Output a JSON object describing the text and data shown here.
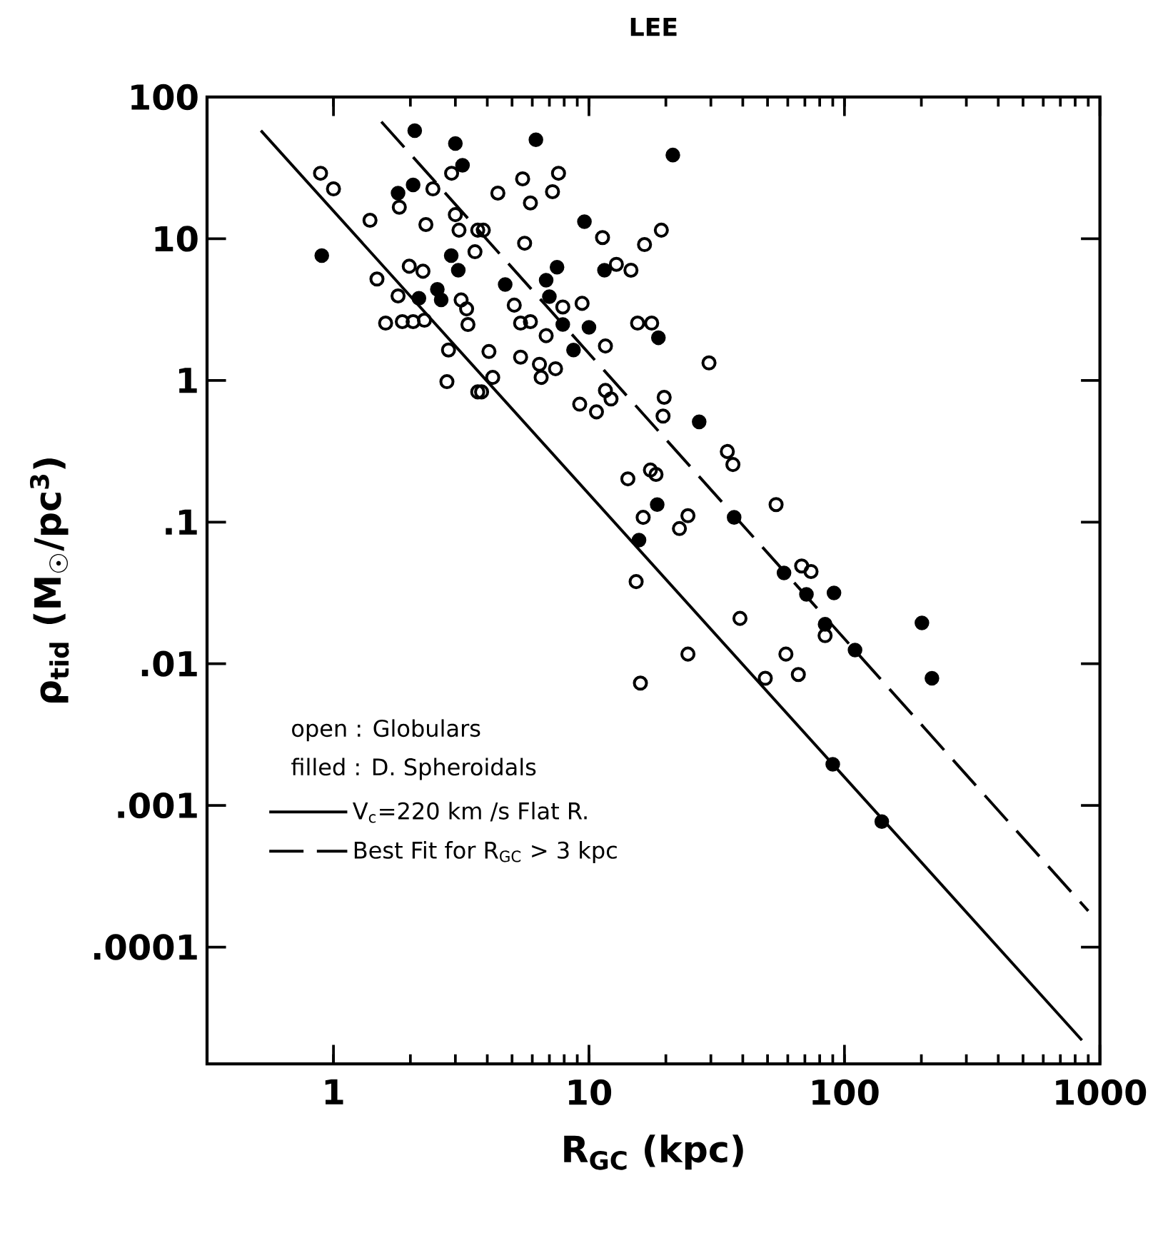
{
  "chart_data": {
    "type": "scatter",
    "title": "LEE",
    "xlabel": "R$_{GC}$ (kpc)",
    "ylabel": "ρ$_{tid}$ (M$_{☉}$/pc$^{3}$)",
    "log": "xy",
    "xlim": [
      0.32,
      1000
    ],
    "ylim": [
      1.5e-05,
      100
    ],
    "xticks": [
      1,
      10,
      100,
      1000
    ],
    "yticks": [
      100,
      10,
      1,
      {
        "value": 0.1,
        "label": ".1"
      },
      {
        "value": 0.01,
        "label": ".01"
      },
      {
        "value": 0.001,
        "label": ".001"
      },
      {
        "value": 0.0001,
        "label": ".0001"
      }
    ],
    "legend": "bottom left",
    "annotations": [
      "open : Globulars",
      "filled : D. Spheroidals"
    ],
    "series": [
      {
        "marker": "open circle",
        "color": "#000000",
        "x": [
          0.89,
          1.0,
          1.39,
          2.3,
          3.1,
          3.0,
          2.9,
          2.45,
          1.81,
          3.67,
          3.58,
          1.98,
          2.24,
          1.48,
          1.79,
          3.16,
          3.32,
          3.36,
          1.6,
          1.86,
          2.05,
          2.27,
          2.82,
          2.78,
          3.67,
          5.5,
          7.6,
          4.4,
          7.2,
          5.9,
          11.3,
          19.2,
          16.5,
          3.86,
          5.6,
          12.8,
          14.6,
          9.4,
          7.9,
          5.1,
          5.4,
          5.9,
          6.8,
          15.5,
          17.6,
          11.6,
          4.06,
          5.4,
          6.4,
          7.4,
          6.5,
          4.2,
          3.8,
          11.6,
          12.2,
          9.2,
          10.7,
          19.7,
          19.5,
          29.5,
          34.8,
          36.6,
          14.2,
          17.4,
          18.3,
          16.3,
          24.4,
          22.6,
          54,
          68,
          74,
          15.3,
          39,
          24.4,
          59,
          66,
          15.9,
          49,
          84
        ],
        "values": [
          29,
          22.5,
          13.5,
          12.6,
          11.5,
          14.8,
          29,
          22.5,
          16.7,
          11.5,
          8.1,
          6.4,
          5.9,
          5.2,
          3.95,
          3.7,
          3.2,
          2.48,
          2.54,
          2.6,
          2.6,
          2.66,
          1.64,
          0.98,
          0.83,
          26.5,
          29,
          21,
          21.5,
          17.9,
          10.2,
          11.5,
          9.1,
          11.5,
          9.3,
          6.6,
          6.0,
          3.5,
          3.3,
          3.4,
          2.54,
          2.6,
          2.07,
          2.54,
          2.54,
          1.75,
          1.6,
          1.46,
          1.3,
          1.21,
          1.05,
          1.05,
          0.83,
          0.85,
          0.74,
          0.68,
          0.6,
          0.76,
          0.56,
          1.33,
          0.315,
          0.255,
          0.202,
          0.233,
          0.217,
          0.108,
          0.111,
          0.09,
          0.133,
          0.049,
          0.0448,
          0.038,
          0.0209,
          0.0117,
          0.0117,
          0.0084,
          0.0073,
          0.0079,
          0.0158
        ]
      },
      {
        "marker": "circle",
        "color": "#000000",
        "x": [
          2.08,
          3.0,
          3.2,
          2.05,
          1.79,
          0.9,
          2.89,
          3.08,
          2.55,
          2.64,
          2.16,
          6.2,
          21.3,
          9.6,
          11.5,
          7.5,
          4.7,
          6.8,
          7.0,
          7.9,
          10.0,
          8.7,
          18.7,
          27,
          18.5,
          37,
          58,
          71,
          91,
          84,
          110,
          201,
          220,
          90,
          140,
          15.7
        ],
        "values": [
          58,
          47,
          33,
          24,
          21,
          7.6,
          7.6,
          6.0,
          4.4,
          3.7,
          3.8,
          50,
          39,
          13.2,
          6.0,
          6.3,
          4.75,
          5.1,
          3.9,
          2.48,
          2.37,
          1.64,
          2.0,
          0.51,
          0.133,
          0.108,
          0.0438,
          0.0309,
          0.0316,
          0.019,
          0.0125,
          0.0194,
          0.0079,
          0.00195,
          0.00077,
          0.0746
        ]
      },
      {
        "name": "V$_{c}$=220 km /s Flat R.",
        "type": "line",
        "line_style": "solid",
        "color": "#000000",
        "x": [
          0.52,
          850
        ],
        "values": [
          58,
          2.2e-05
        ]
      },
      {
        "name": "Best Fit for R$_{GC}$ > 3 kpc",
        "type": "line",
        "line_style": "dashed",
        "color": "#000000",
        "x": [
          1.54,
          900
        ],
        "values": [
          67,
          0.00018
        ]
      }
    ]
  }
}
